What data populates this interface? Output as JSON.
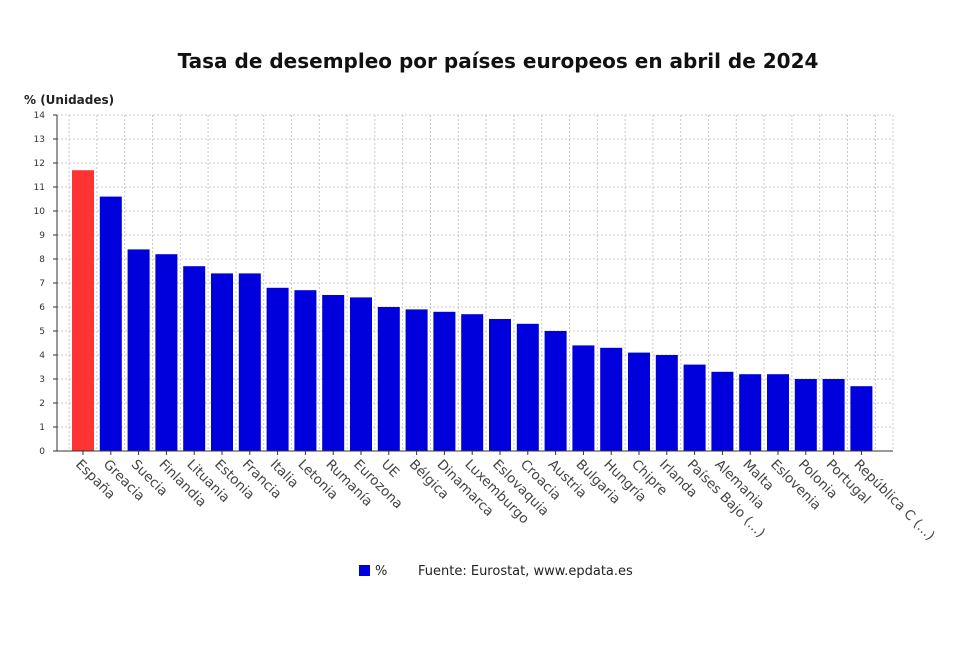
{
  "chart_data": {
    "type": "bar",
    "title": "Tasa de desempleo por países europeos en abril de 2024",
    "ylabel": "% (Unidades)",
    "xlabel": "",
    "ylim": [
      0,
      14
    ],
    "yticks": [
      0,
      1,
      2,
      3,
      4,
      5,
      6,
      7,
      8,
      9,
      10,
      11,
      12,
      13,
      14
    ],
    "grid": true,
    "legend_position": "bottom",
    "categories": [
      "España",
      "Greacia",
      "Suecia",
      "Finlandia",
      "Lituania",
      "Estonia",
      "Francia",
      "Italia",
      "Letonia",
      "Rumanía",
      "Eurozona",
      "UE",
      "Bélgica",
      "Dinamarca",
      "Luxemburgo",
      "Eslovaquia",
      "Croacia",
      "Austria",
      "Bulgaria",
      "Hungría",
      "Chipre",
      "Irlanda",
      "Países Bajo (...)",
      "Alemania",
      "Malta",
      "Eslovenia",
      "Polonia",
      "Portugal",
      "República C (...)"
    ],
    "series": [
      {
        "name": "%",
        "values": [
          11.7,
          10.6,
          8.4,
          8.2,
          7.7,
          7.4,
          7.4,
          6.8,
          6.7,
          6.5,
          6.4,
          6.0,
          5.9,
          5.8,
          5.7,
          5.5,
          5.3,
          5.0,
          4.4,
          4.3,
          4.1,
          4.0,
          3.6,
          3.3,
          3.2,
          3.2,
          3.0,
          3.0,
          2.7
        ]
      }
    ],
    "highlight_index": 0,
    "colors": {
      "bar": "#0000dd",
      "highlight": "#ff3333"
    },
    "source": "Fuente: Eurostat, www.epdata.es"
  }
}
